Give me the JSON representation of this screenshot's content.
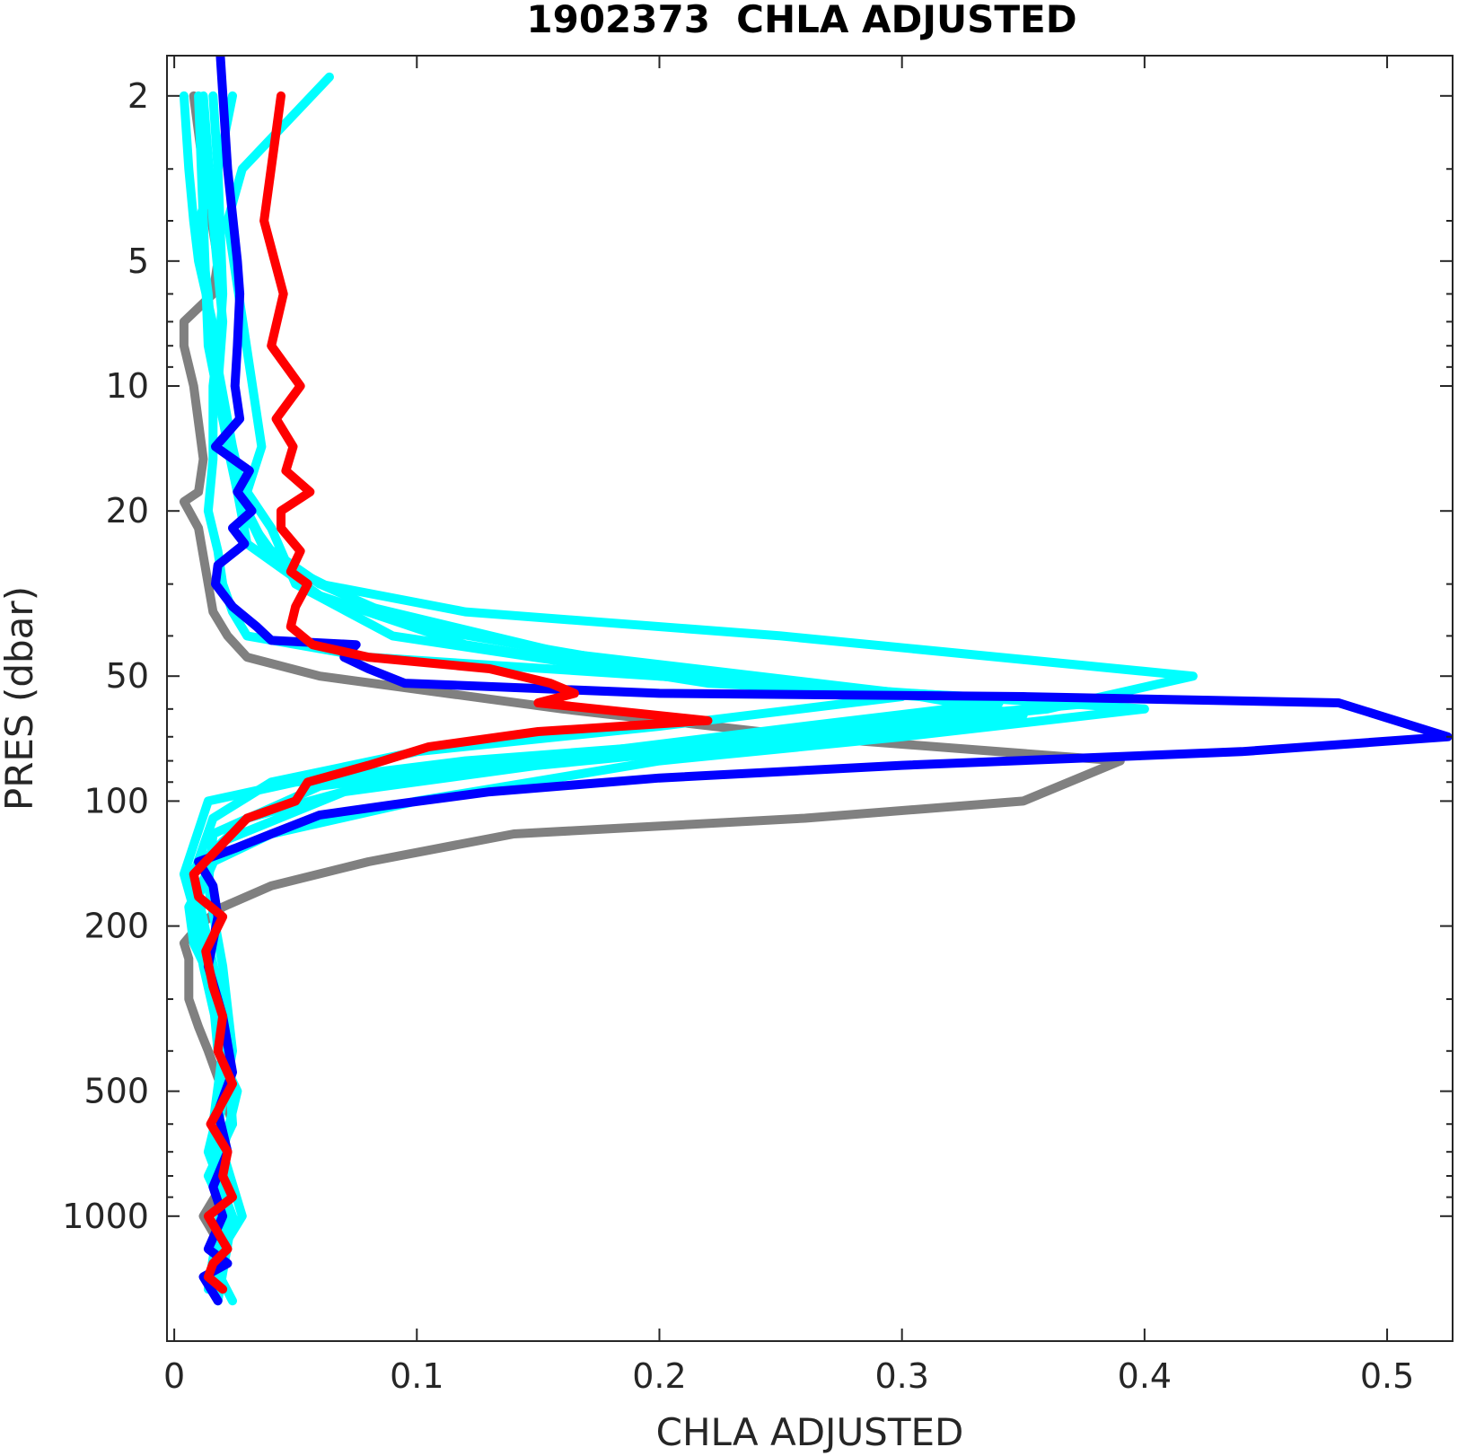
{
  "chart_data": {
    "type": "line",
    "title": "1902373  CHLA ADJUSTED",
    "xlabel": "CHLA ADJUSTED",
    "ylabel": "PRES (dbar)",
    "xlim": [
      -0.003,
      0.527
    ],
    "ylim": [
      1.6,
      2000
    ],
    "yscale": "log",
    "yreversed": true,
    "grid": false,
    "xticks": [
      0,
      0.1,
      0.2,
      0.3,
      0.4,
      0.5
    ],
    "xtick_labels": [
      "0",
      "0.1",
      "0.2",
      "0.3",
      "0.4",
      "0.5"
    ],
    "yticks": [
      2,
      5,
      10,
      20,
      50,
      100,
      200,
      500,
      1000
    ],
    "ytick_labels": [
      "2",
      "5",
      "10",
      "20",
      "50",
      "100",
      "200",
      "500",
      "1000"
    ],
    "colors": {
      "gray": "#808080",
      "cyan": "#00ffff",
      "blue": "#0000ff",
      "red": "#ff0000"
    },
    "series": [
      {
        "color": "gray",
        "x": [
          0.008,
          0.012,
          0.018,
          0.016,
          0.004,
          0.004,
          0.008,
          0.012,
          0.01,
          0.004,
          0.01,
          0.014,
          0.016,
          0.022,
          0.03,
          0.06,
          0.16,
          0.26,
          0.39,
          0.35,
          0.26,
          0.14,
          0.08,
          0.04,
          0.02,
          0.01,
          0.004,
          0.006,
          0.006,
          0.01,
          0.014,
          0.02,
          0.024,
          0.016,
          0.022,
          0.012,
          0.02,
          0.016
        ],
        "y": [
          2,
          3,
          5,
          6,
          7,
          8,
          10,
          15,
          18,
          19,
          22,
          30,
          35,
          40,
          45,
          50,
          60,
          70,
          80,
          100,
          110,
          120,
          140,
          160,
          180,
          200,
          220,
          240,
          300,
          350,
          400,
          500,
          600,
          700,
          800,
          1000,
          1200,
          1500
        ]
      },
      {
        "color": "cyan",
        "x": [
          0.004,
          0.006,
          0.008,
          0.01,
          0.018,
          0.016,
          0.016,
          0.014,
          0.018,
          0.02,
          0.024,
          0.03,
          0.08,
          0.2,
          0.4,
          0.3,
          0.2,
          0.1,
          0.04,
          0.016,
          0.006,
          0.008,
          0.014,
          0.02,
          0.022,
          0.024,
          0.014,
          0.022,
          0.018
        ],
        "y": [
          2,
          3,
          4,
          5,
          8,
          10,
          15,
          20,
          25,
          30,
          35,
          40,
          45,
          50,
          60,
          70,
          80,
          100,
          120,
          140,
          180,
          220,
          260,
          320,
          400,
          600,
          800,
          1000,
          1500
        ]
      },
      {
        "color": "cyan",
        "x": [
          0.024,
          0.018,
          0.01,
          0.014,
          0.016,
          0.02,
          0.026,
          0.028,
          0.04,
          0.06,
          0.12,
          0.25,
          0.42,
          0.36,
          0.25,
          0.12,
          0.05,
          0.014,
          0.004,
          0.01,
          0.016,
          0.018,
          0.026,
          0.02,
          0.028,
          0.016,
          0.024
        ],
        "y": [
          2,
          3,
          4,
          6,
          9,
          12,
          16,
          20,
          25,
          30,
          35,
          40,
          50,
          60,
          70,
          80,
          90,
          100,
          150,
          200,
          300,
          400,
          500,
          700,
          1000,
          1300,
          1600
        ]
      },
      {
        "color": "cyan",
        "x": [
          0.012,
          0.016,
          0.02,
          0.018,
          0.022,
          0.026,
          0.03,
          0.06,
          0.12,
          0.22,
          0.38,
          0.3,
          0.2,
          0.1,
          0.03,
          0.006,
          0.012,
          0.018,
          0.022,
          0.014,
          0.024,
          0.018
        ],
        "y": [
          2,
          4,
          7,
          10,
          14,
          18,
          24,
          32,
          42,
          52,
          58,
          64,
          74,
          85,
          110,
          150,
          220,
          300,
          450,
          700,
          1000,
          1600
        ]
      },
      {
        "color": "cyan",
        "x": [
          0.016,
          0.018,
          0.02,
          0.018,
          0.024,
          0.03,
          0.04,
          0.08,
          0.16,
          0.3,
          0.35,
          0.25,
          0.15,
          0.07,
          0.02,
          0.008,
          0.012,
          0.02,
          0.016,
          0.022,
          0.018
        ],
        "y": [
          2,
          3,
          6,
          9,
          14,
          20,
          26,
          34,
          44,
          55,
          62,
          72,
          82,
          95,
          125,
          180,
          250,
          400,
          600,
          900,
          1400
        ]
      },
      {
        "color": "cyan",
        "x": [
          0.064,
          0.028,
          0.022,
          0.036,
          0.03,
          0.04,
          0.05,
          0.09,
          0.2,
          0.34,
          0.26,
          0.16,
          0.06,
          0.016,
          0.014,
          0.02,
          0.024,
          0.016,
          0.022
        ],
        "y": [
          1.8,
          3,
          4,
          14,
          18,
          22,
          30,
          40,
          50,
          58,
          66,
          78,
          92,
          120,
          160,
          250,
          400,
          700,
          1200
        ]
      },
      {
        "color": "cyan",
        "x": [
          0.01,
          0.012,
          0.014,
          0.02,
          0.026,
          0.036,
          0.06,
          0.1,
          0.2,
          0.3,
          0.2,
          0.1,
          0.04,
          0.016,
          0.008,
          0.014,
          0.022,
          0.018,
          0.02,
          0.014
        ],
        "y": [
          2,
          4,
          8,
          12,
          18,
          24,
          30,
          38,
          48,
          56,
          66,
          76,
          90,
          110,
          150,
          220,
          350,
          550,
          900,
          1500
        ]
      },
      {
        "color": "blue",
        "x": [
          0.019,
          0.022,
          0.026,
          0.027,
          0.026,
          0.025,
          0.027,
          0.017,
          0.031,
          0.026,
          0.032,
          0.024,
          0.029,
          0.018,
          0.017,
          0.024,
          0.034,
          0.04,
          0.075,
          0.07,
          0.08,
          0.095,
          0.2,
          0.35,
          0.48,
          0.525,
          0.44,
          0.3,
          0.2,
          0.13,
          0.09,
          0.06,
          0.04,
          0.025,
          0.01,
          0.016,
          0.018,
          0.014,
          0.02,
          0.024,
          0.018,
          0.022,
          0.016,
          0.02,
          0.014,
          0.022,
          0.012,
          0.018
        ],
        "y": [
          1.6,
          3,
          5,
          6,
          8,
          10,
          12,
          14,
          16,
          18,
          20,
          22,
          24,
          27,
          30,
          34,
          38,
          41,
          42,
          45,
          48,
          52,
          55,
          56,
          58,
          70,
          76,
          82,
          88,
          95,
          102,
          108,
          120,
          130,
          140,
          160,
          190,
          250,
          330,
          450,
          560,
          700,
          850,
          1000,
          1200,
          1300,
          1400,
          1600
        ]
      },
      {
        "color": "red",
        "x": [
          0.044,
          0.037,
          0.045,
          0.04,
          0.052,
          0.042,
          0.049,
          0.046,
          0.056,
          0.044,
          0.044,
          0.052,
          0.048,
          0.055,
          0.05,
          0.048,
          0.057,
          0.08,
          0.13,
          0.155,
          0.165,
          0.15,
          0.22,
          0.15,
          0.105,
          0.08,
          0.055,
          0.05,
          0.03,
          0.008,
          0.01,
          0.02,
          0.013,
          0.016,
          0.02,
          0.018,
          0.024,
          0.015,
          0.022,
          0.02,
          0.024,
          0.014,
          0.022,
          0.016,
          0.014,
          0.02
        ],
        "y": [
          2,
          4,
          6,
          8,
          10,
          12,
          14,
          16,
          18,
          20,
          22,
          25,
          28,
          30,
          34,
          38,
          42,
          45,
          48,
          52,
          55,
          58,
          64,
          68,
          74,
          82,
          90,
          100,
          110,
          150,
          170,
          190,
          230,
          280,
          330,
          400,
          480,
          600,
          700,
          800,
          900,
          1000,
          1200,
          1300,
          1400,
          1500
        ]
      }
    ]
  }
}
